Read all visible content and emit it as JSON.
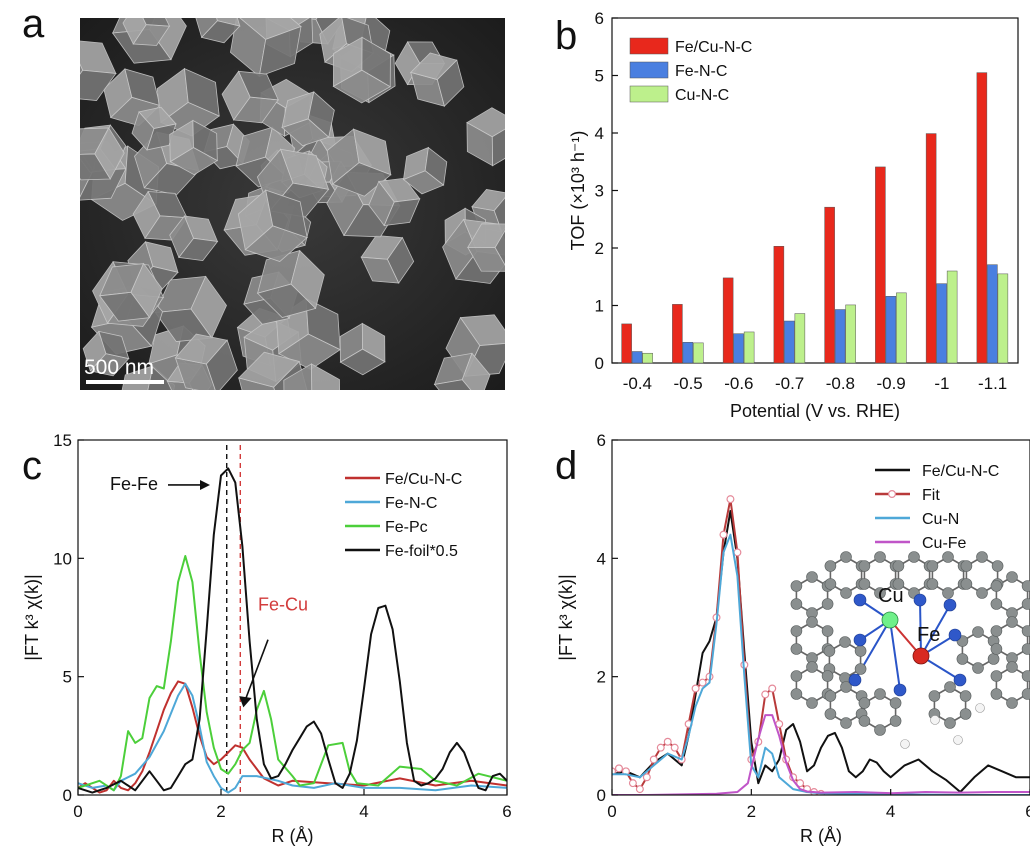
{
  "panels": {
    "a": "a",
    "b": "b",
    "c": "c",
    "d": "d"
  },
  "sem": {
    "scale_bar": "500 nm"
  },
  "chart_data": [
    {
      "id": "b",
      "type": "bar",
      "xlabel": "Potential (V vs. RHE)",
      "ylabel": "TOF (×10³ h⁻¹)",
      "categories": [
        "-0.4",
        "-0.5",
        "-0.6",
        "-0.7",
        "-0.8",
        "-0.9",
        "-1",
        "-1.1"
      ],
      "ylim": [
        0,
        6
      ],
      "yticks": [
        0,
        1,
        2,
        3,
        4,
        5,
        6
      ],
      "legend_position": "top-left",
      "series": [
        {
          "name": "Fe/Cu-N-C",
          "color": "#e8281c",
          "values": [
            0.68,
            1.02,
            1.48,
            2.03,
            2.71,
            3.41,
            3.99,
            5.05
          ]
        },
        {
          "name": "Fe-N-C",
          "color": "#4a7fe0",
          "values": [
            0.2,
            0.36,
            0.51,
            0.73,
            0.93,
            1.16,
            1.38,
            1.71
          ]
        },
        {
          "name": "Cu-N-C",
          "color": "#bdf08c",
          "values": [
            0.17,
            0.35,
            0.54,
            0.86,
            1.01,
            1.22,
            1.6,
            1.55
          ]
        }
      ]
    },
    {
      "id": "c",
      "type": "line",
      "xlabel": "R (Å)",
      "ylabel": "|FT k³ χ(k)|",
      "xlim": [
        0,
        6
      ],
      "ylim": [
        0,
        15
      ],
      "xticks": [
        0,
        2,
        4,
        6
      ],
      "yticks": [
        0,
        5,
        10,
        15
      ],
      "legend_position": "top-right",
      "annotations": [
        {
          "text": "Fe-Fe",
          "x": 1.05,
          "y": 13.1,
          "color": "#111111"
        },
        {
          "text": "Fe-Cu",
          "x": 2.55,
          "y": 8.0,
          "color": "#d23b3b"
        }
      ],
      "reference_lines": [
        {
          "x": 2.08,
          "color": "#111111",
          "style": "dashed"
        },
        {
          "x": 2.27,
          "color": "#d23b3b",
          "style": "dashed"
        }
      ],
      "series": [
        {
          "name": "Fe/Cu-N-C",
          "color": "#c0312f",
          "x": [
            0,
            0.1,
            0.3,
            0.4,
            0.5,
            0.6,
            0.7,
            0.8,
            0.9,
            1.0,
            1.1,
            1.2,
            1.3,
            1.4,
            1.5,
            1.6,
            1.7,
            1.8,
            1.9,
            2.0,
            2.1,
            2.2,
            2.3,
            2.4,
            2.6,
            2.8,
            3.0,
            3.5,
            4.0,
            4.5,
            5.0,
            5.5,
            6.0
          ],
          "y": [
            0.3,
            0.5,
            0.1,
            0.2,
            0.6,
            0.3,
            0.2,
            0.5,
            1.0,
            1.8,
            2.7,
            3.6,
            4.3,
            4.8,
            4.7,
            3.7,
            2.5,
            1.6,
            1.3,
            1.5,
            1.8,
            2.1,
            2.0,
            1.5,
            0.7,
            0.4,
            0.6,
            0.5,
            0.4,
            0.7,
            0.4,
            0.6,
            0.4
          ]
        },
        {
          "name": "Fe-N-C",
          "color": "#4ea8d8",
          "x": [
            0,
            0.2,
            0.4,
            0.5,
            0.6,
            0.8,
            1.0,
            1.2,
            1.4,
            1.5,
            1.6,
            1.7,
            1.8,
            1.9,
            2.0,
            2.1,
            2.2,
            2.3,
            2.5,
            2.8,
            3.0,
            3.3,
            3.6,
            4.0,
            4.5,
            5.0,
            5.5,
            6.0
          ],
          "y": [
            0.5,
            0.3,
            0.4,
            0.2,
            0.6,
            0.9,
            1.6,
            2.7,
            4.2,
            4.7,
            4.2,
            2.9,
            1.4,
            0.8,
            0.3,
            0.1,
            0.3,
            0.8,
            0.8,
            0.6,
            0.4,
            0.3,
            0.5,
            0.3,
            0.3,
            0.2,
            0.4,
            0.3
          ]
        },
        {
          "name": "Fe-Pc",
          "color": "#4ccf3a",
          "x": [
            0,
            0.3,
            0.5,
            0.6,
            0.7,
            0.8,
            0.9,
            1.0,
            1.1,
            1.2,
            1.3,
            1.4,
            1.5,
            1.6,
            1.7,
            1.8,
            1.9,
            2.0,
            2.1,
            2.2,
            2.3,
            2.4,
            2.5,
            2.6,
            2.7,
            2.8,
            3.0,
            3.1,
            3.3,
            3.5,
            3.7,
            3.8,
            3.9,
            4.2,
            4.5,
            4.8,
            5.0,
            5.3,
            5.6,
            6.0
          ],
          "y": [
            0.3,
            0.6,
            0.2,
            0.8,
            2.7,
            2.2,
            2.4,
            4.1,
            4.6,
            4.5,
            6.5,
            9.0,
            10.1,
            9.0,
            6.0,
            3.5,
            2.0,
            1.1,
            0.9,
            1.3,
            1.9,
            2.2,
            3.6,
            4.4,
            3.2,
            1.5,
            0.8,
            0.4,
            0.5,
            2.1,
            2.2,
            1.0,
            0.5,
            0.4,
            1.2,
            1.1,
            0.6,
            0.4,
            0.9,
            0.6
          ]
        },
        {
          "name": "Fe-foil*0.5",
          "color": "#111111",
          "x": [
            0,
            0.2,
            0.4,
            0.6,
            0.8,
            1.0,
            1.1,
            1.2,
            1.3,
            1.4,
            1.5,
            1.6,
            1.7,
            1.8,
            1.9,
            2.0,
            2.1,
            2.2,
            2.3,
            2.4,
            2.5,
            2.6,
            2.7,
            2.8,
            2.9,
            3.0,
            3.1,
            3.2,
            3.3,
            3.4,
            3.5,
            3.6,
            3.7,
            3.8,
            3.9,
            4.0,
            4.1,
            4.2,
            4.3,
            4.4,
            4.5,
            4.6,
            4.7,
            4.8,
            4.9,
            5.0,
            5.1,
            5.2,
            5.3,
            5.4,
            5.5,
            5.6,
            5.7,
            5.8,
            5.9,
            6.0
          ],
          "y": [
            0.3,
            0.1,
            0.3,
            0.6,
            0.2,
            1.0,
            0.6,
            0.2,
            0.3,
            0.8,
            1.3,
            1.5,
            3.2,
            7.0,
            11.0,
            13.5,
            13.8,
            13.2,
            10.5,
            6.5,
            3.2,
            1.3,
            0.7,
            0.8,
            1.3,
            1.9,
            2.4,
            2.9,
            3.1,
            2.6,
            1.5,
            0.5,
            0.3,
            0.9,
            2.3,
            4.5,
            6.8,
            7.9,
            8.0,
            7.0,
            4.8,
            2.2,
            0.6,
            0.4,
            0.5,
            0.7,
            1.1,
            1.8,
            2.2,
            1.8,
            1.0,
            0.3,
            0.2,
            0.8,
            0.9,
            0.6
          ]
        }
      ]
    },
    {
      "id": "d",
      "type": "line",
      "xlabel": "R (Å)",
      "ylabel": "|FT k³ χ(k)|",
      "xlim": [
        0,
        6
      ],
      "ylim": [
        0,
        6
      ],
      "xticks": [
        0,
        2,
        4,
        6
      ],
      "yticks": [
        0,
        2,
        4,
        6
      ],
      "legend_position": "top-right",
      "inset": {
        "atom_labels": [
          "Cu",
          "Fe"
        ]
      },
      "series": [
        {
          "name": "Fe/Cu-N-C",
          "color": "#111111",
          "x": [
            0,
            0.2,
            0.4,
            0.6,
            0.8,
            1.0,
            1.1,
            1.2,
            1.3,
            1.4,
            1.5,
            1.6,
            1.7,
            1.8,
            1.9,
            2.0,
            2.1,
            2.2,
            2.3,
            2.4,
            2.5,
            2.6,
            2.7,
            2.8,
            2.9,
            3.0,
            3.1,
            3.2,
            3.3,
            3.4,
            3.5,
            3.6,
            3.7,
            3.8,
            3.9,
            4.0,
            4.2,
            4.4,
            4.6,
            4.8,
            5.0,
            5.2,
            5.4,
            5.6,
            5.8,
            6.0
          ],
          "y": [
            0.35,
            0.4,
            0.3,
            0.55,
            0.7,
            0.5,
            1.0,
            1.7,
            2.4,
            2.6,
            3.0,
            4.1,
            4.8,
            4.0,
            2.4,
            0.9,
            0.2,
            0.5,
            0.4,
            0.6,
            1.1,
            1.2,
            0.9,
            0.4,
            0.5,
            0.8,
            1.0,
            1.05,
            0.8,
            0.4,
            0.3,
            0.4,
            0.6,
            0.55,
            0.4,
            0.3,
            0.5,
            0.6,
            0.4,
            0.25,
            0.05,
            0.3,
            0.5,
            0.4,
            0.3,
            0.3
          ]
        },
        {
          "name": "Fit",
          "color": "#b83a3a",
          "marker": "open-circle",
          "x": [
            0,
            0.1,
            0.2,
            0.3,
            0.4,
            0.5,
            0.6,
            0.7,
            0.8,
            0.9,
            1.0,
            1.1,
            1.2,
            1.3,
            1.4,
            1.5,
            1.6,
            1.7,
            1.8,
            1.9,
            2.0,
            2.1,
            2.2,
            2.3,
            2.4,
            2.5,
            2.6,
            2.7,
            2.8,
            2.9,
            3.0
          ],
          "y": [
            0.4,
            0.45,
            0.4,
            0.2,
            0.1,
            0.3,
            0.6,
            0.8,
            0.9,
            0.8,
            0.6,
            1.2,
            1.8,
            1.9,
            2.0,
            3.0,
            4.4,
            5.0,
            4.1,
            2.2,
            0.6,
            0.9,
            1.7,
            1.8,
            1.2,
            0.6,
            0.3,
            0.2,
            0.1,
            0.05,
            0.02
          ]
        },
        {
          "name": "Cu-N",
          "color": "#4ea8d8",
          "x": [
            0,
            0.2,
            0.4,
            0.6,
            0.8,
            1.0,
            1.1,
            1.2,
            1.3,
            1.4,
            1.5,
            1.6,
            1.7,
            1.8,
            1.9,
            2.0,
            2.1,
            2.2,
            2.3,
            2.4,
            2.6,
            2.8,
            3.0,
            3.5,
            4.0,
            5.0,
            6.0
          ],
          "y": [
            0.35,
            0.35,
            0.3,
            0.5,
            0.7,
            0.6,
            1.0,
            1.5,
            1.8,
            1.9,
            2.9,
            4.1,
            4.4,
            3.7,
            2.0,
            0.5,
            0.3,
            0.8,
            0.7,
            0.3,
            0.1,
            0.05,
            0.03,
            0.02,
            0.01,
            0.0,
            0.0
          ]
        },
        {
          "name": "Cu-Fe",
          "color": "#c055c8",
          "x": [
            0,
            0.5,
            1.0,
            1.5,
            1.8,
            1.95,
            2.0,
            2.1,
            2.2,
            2.3,
            2.4,
            2.5,
            2.6,
            2.7,
            2.8,
            3.0,
            3.5,
            4.0,
            4.5,
            5.0,
            5.5,
            6.0
          ],
          "y": [
            0.0,
            0.0,
            0.01,
            0.02,
            0.05,
            0.2,
            0.45,
            0.95,
            1.35,
            1.35,
            1.0,
            0.55,
            0.25,
            0.1,
            0.06,
            0.04,
            0.05,
            0.03,
            0.05,
            0.04,
            0.05,
            0.05
          ]
        }
      ]
    }
  ]
}
